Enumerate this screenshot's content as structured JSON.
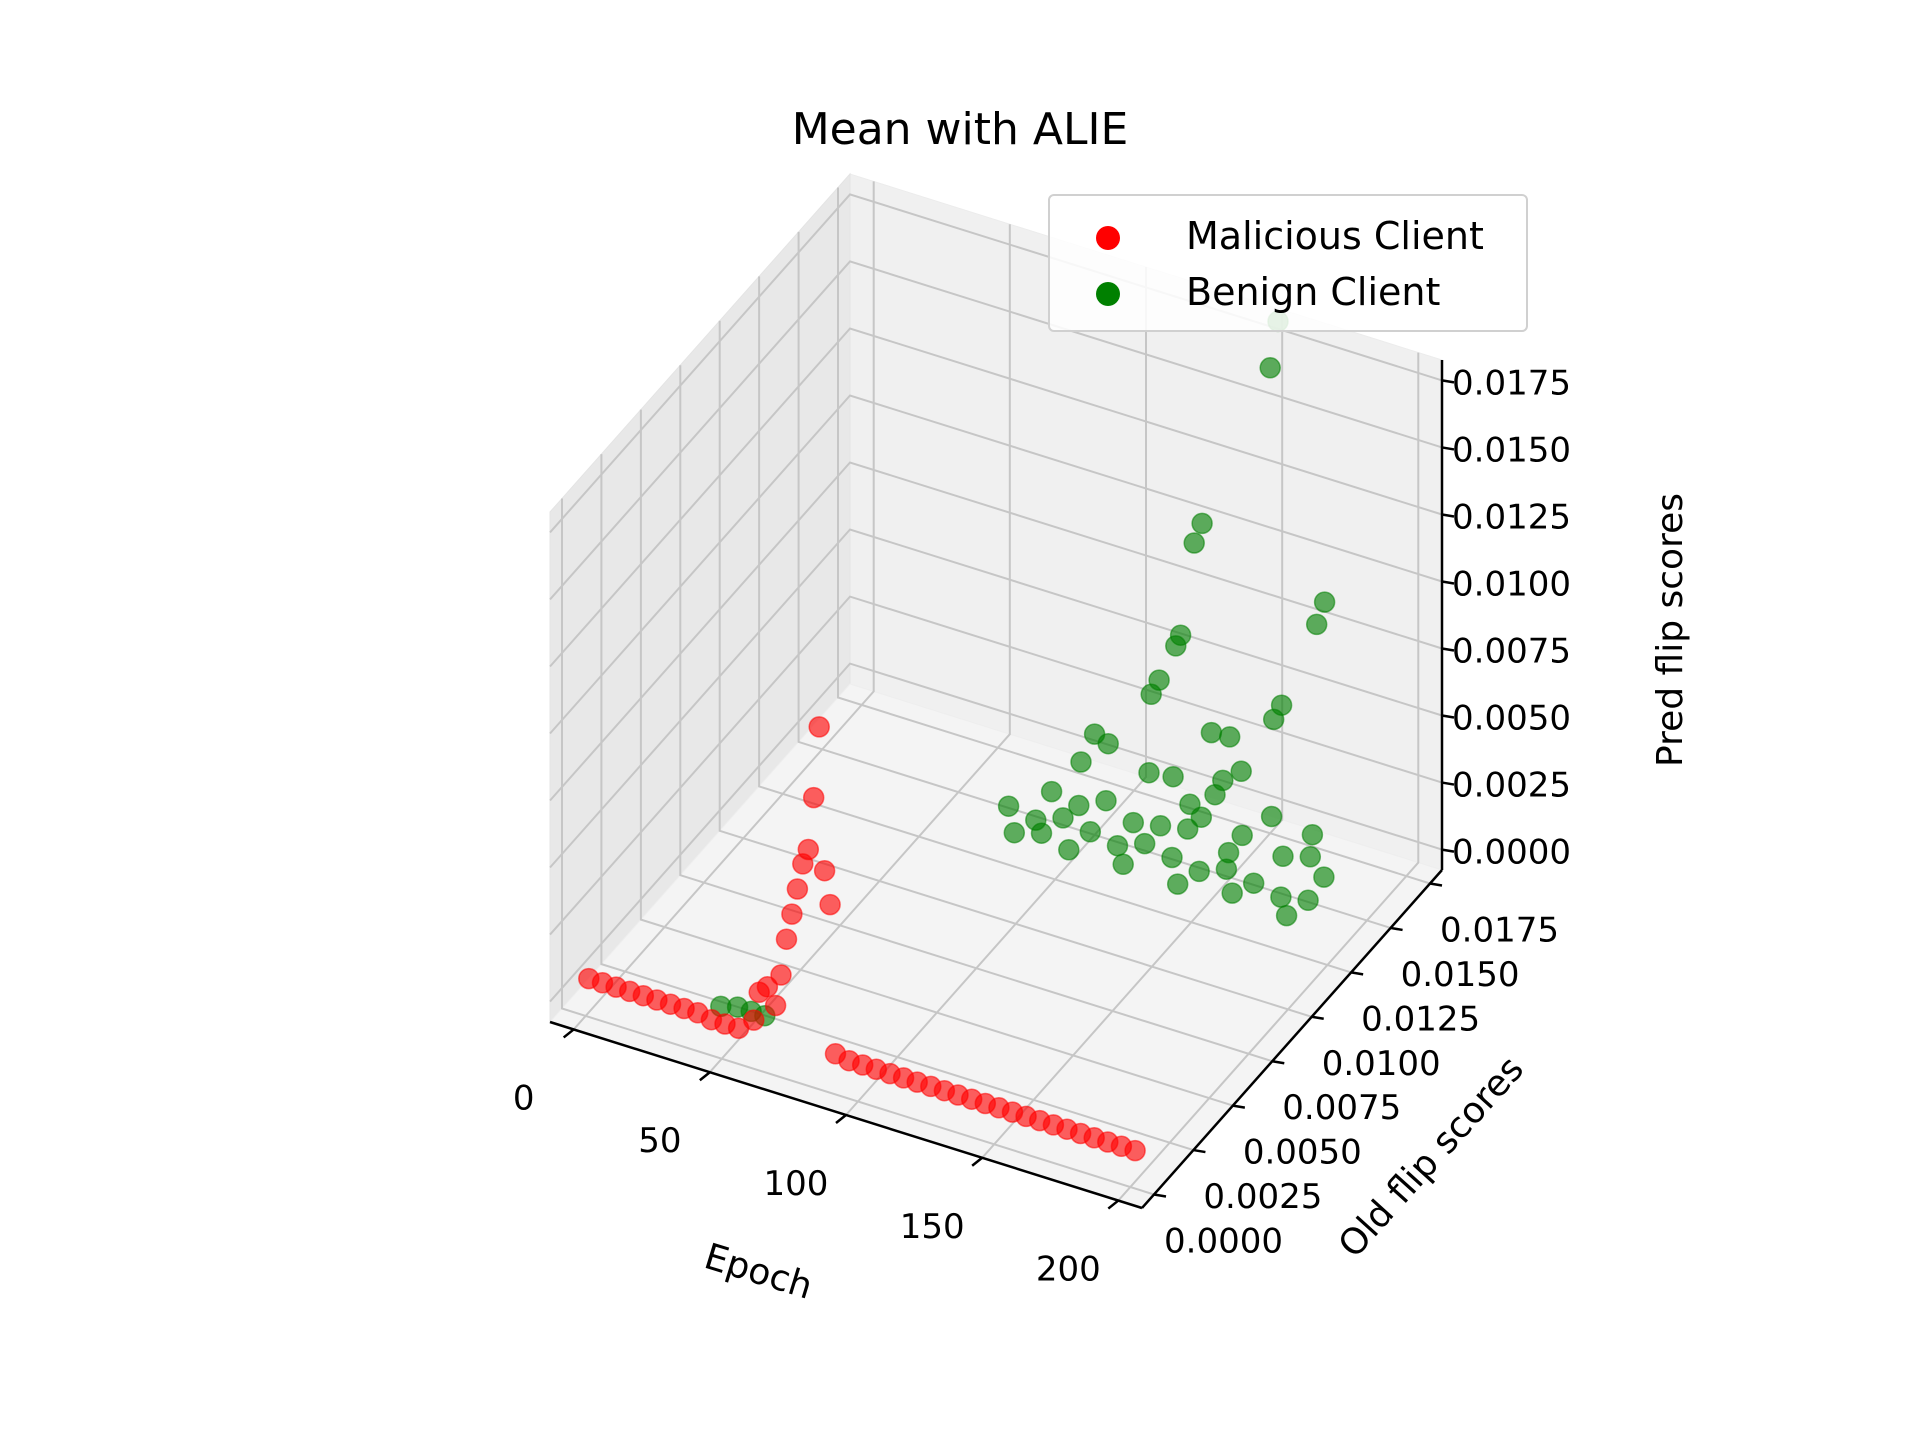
{
  "chart_data": {
    "type": "scatter",
    "projection": "3d",
    "title": "Mean with ALIE",
    "xlabel": "Epoch",
    "ylabel": "Old flip scores",
    "zlabel": "Pred flip scores",
    "xlim": [
      0,
      200
    ],
    "ylim": [
      0,
      0.0175
    ],
    "zlim": [
      0,
      0.0175
    ],
    "x_ticks": [
      "0",
      "50",
      "100",
      "150",
      "200"
    ],
    "y_ticks": [
      "0.0000",
      "0.0025",
      "0.0050",
      "0.0075",
      "0.0100",
      "0.0125",
      "0.0150",
      "0.0175"
    ],
    "z_ticks": [
      "0.0000",
      "0.0025",
      "0.0050",
      "0.0075",
      "0.0100",
      "0.0125",
      "0.0150",
      "0.0175"
    ],
    "grid": true,
    "legend_position": "top-right",
    "colors": {
      "malicious": "#ff0000",
      "benign": "#008000"
    },
    "series": [
      {
        "name": "Malicious Client",
        "points": [
          [
            0,
            0.0002,
            0.0005
          ],
          [
            5,
            0.0002,
            0.0005
          ],
          [
            10,
            0.0002,
            0.0005
          ],
          [
            15,
            0.0002,
            0.0005
          ],
          [
            20,
            0.0002,
            0.0005
          ],
          [
            25,
            0.0002,
            0.0005
          ],
          [
            30,
            0.0002,
            0.0005
          ],
          [
            35,
            0.0002,
            0.0005
          ],
          [
            40,
            0.0002,
            0.0005
          ],
          [
            45,
            0.0002,
            0.0004
          ],
          [
            50,
            0.0002,
            0.0004
          ],
          [
            55,
            0.0002,
            0.0004
          ],
          [
            60,
            0.0003,
            0.0008
          ],
          [
            62,
            0.0003,
            0.0019
          ],
          [
            65,
            0.0003,
            0.0022
          ],
          [
            68,
            0.0003,
            0.0016
          ],
          [
            70,
            0.0003,
            0.0028
          ],
          [
            72,
            0.0003,
            0.0042
          ],
          [
            74,
            0.0003,
            0.0052
          ],
          [
            76,
            0.0003,
            0.0062
          ],
          [
            78,
            0.0003,
            0.0072
          ],
          [
            80,
            0.0003,
            0.0078
          ],
          [
            82,
            0.0003,
            0.0098
          ],
          [
            84,
            0.0003,
            0.0125
          ],
          [
            86,
            0.0003,
            0.0072
          ],
          [
            88,
            0.0003,
            0.006
          ],
          [
            90,
            0.0003,
            0.0005
          ],
          [
            95,
            0.0003,
            0.0004
          ],
          [
            100,
            0.0003,
            0.0004
          ],
          [
            105,
            0.0003,
            0.0004
          ],
          [
            110,
            0.0003,
            0.0004
          ],
          [
            115,
            0.0003,
            0.0004
          ],
          [
            120,
            0.0003,
            0.0004
          ],
          [
            125,
            0.0003,
            0.0004
          ],
          [
            130,
            0.0003,
            0.0004
          ],
          [
            135,
            0.0003,
            0.0004
          ],
          [
            140,
            0.0003,
            0.0004
          ],
          [
            145,
            0.0003,
            0.0004
          ],
          [
            150,
            0.0003,
            0.0004
          ],
          [
            155,
            0.0003,
            0.0004
          ],
          [
            160,
            0.0003,
            0.0004
          ],
          [
            165,
            0.0003,
            0.0004
          ],
          [
            170,
            0.0003,
            0.0004
          ],
          [
            175,
            0.0003,
            0.0004
          ],
          [
            180,
            0.0003,
            0.0004
          ],
          [
            185,
            0.0003,
            0.0004
          ],
          [
            190,
            0.0003,
            0.0004
          ],
          [
            195,
            0.0003,
            0.0004
          ],
          [
            200,
            0.0003,
            0.0004
          ]
        ]
      },
      {
        "name": "Benign Client",
        "points": [
          [
            150,
            0.018,
            0.018
          ],
          [
            150,
            0.0175,
            0.0166
          ],
          [
            125,
            0.0175,
            0.01
          ],
          [
            125,
            0.017,
            0.0096
          ],
          [
            170,
            0.0175,
            0.0085
          ],
          [
            170,
            0.017,
            0.008
          ],
          [
            120,
            0.017,
            0.006
          ],
          [
            120,
            0.0167,
            0.0058
          ],
          [
            115,
            0.0165,
            0.0045
          ],
          [
            115,
            0.016,
            0.0043
          ],
          [
            160,
            0.0165,
            0.005
          ],
          [
            160,
            0.016,
            0.0048
          ],
          [
            140,
            0.0155,
            0.004
          ],
          [
            145,
            0.0158,
            0.0038
          ],
          [
            100,
            0.015,
            0.003
          ],
          [
            105,
            0.015,
            0.0028
          ],
          [
            130,
            0.0148,
            0.0025
          ],
          [
            150,
            0.0145,
            0.0032
          ],
          [
            155,
            0.0148,
            0.0035
          ],
          [
            165,
            0.015,
            0.002
          ],
          [
            180,
            0.015,
            0.0018
          ],
          [
            95,
            0.015,
            0.0018
          ],
          [
            120,
            0.015,
            0.0022
          ],
          [
            135,
            0.015,
            0.0015
          ],
          [
            145,
            0.014,
            0.002
          ],
          [
            150,
            0.014,
            0.003
          ],
          [
            160,
            0.014,
            0.0018
          ],
          [
            90,
            0.014,
            0.0012
          ],
          [
            100,
            0.014,
            0.001
          ],
          [
            110,
            0.014,
            0.0015
          ],
          [
            120,
            0.014,
            0.001
          ],
          [
            130,
            0.014,
            0.0012
          ],
          [
            140,
            0.014,
            0.0014
          ],
          [
            155,
            0.014,
            0.001
          ],
          [
            175,
            0.014,
            0.0015
          ],
          [
            185,
            0.014,
            0.0018
          ],
          [
            190,
            0.014,
            0.0012
          ],
          [
            80,
            0.013,
            0.001
          ],
          [
            90,
            0.013,
            0.0008
          ],
          [
            100,
            0.013,
            0.0012
          ],
          [
            110,
            0.013,
            0.001
          ],
          [
            120,
            0.013,
            0.0008
          ],
          [
            130,
            0.013,
            0.0012
          ],
          [
            140,
            0.013,
            0.001
          ],
          [
            150,
            0.013,
            0.0008
          ],
          [
            160,
            0.013,
            0.0012
          ],
          [
            170,
            0.013,
            0.001
          ],
          [
            180,
            0.013,
            0.0008
          ],
          [
            190,
            0.013,
            0.001
          ],
          [
            85,
            0.0125,
            0.0005
          ],
          [
            95,
            0.0125,
            0.0008
          ],
          [
            105,
            0.0125,
            0.0005
          ],
          [
            125,
            0.0125,
            0.0006
          ],
          [
            145,
            0.0125,
            0.0005
          ],
          [
            165,
            0.0125,
            0.0008
          ],
          [
            185,
            0.0125,
            0.0006
          ],
          [
            60,
            0.001,
            0.0005
          ],
          [
            55,
            0.001,
            0.0005
          ],
          [
            50,
            0.001,
            0.0005
          ],
          [
            45,
            0.0008,
            0.0005
          ]
        ]
      }
    ]
  }
}
